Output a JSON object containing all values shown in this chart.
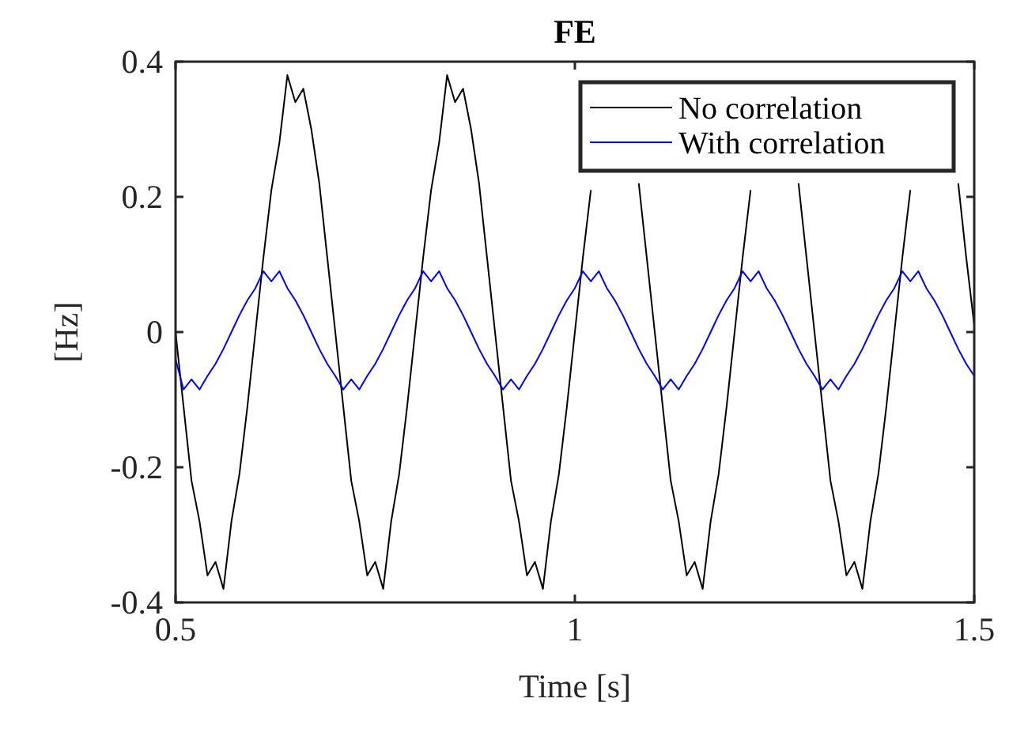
{
  "chart_data": {
    "type": "line",
    "title": "FE",
    "xlabel": "Time [s]",
    "ylabel": "[Hz]",
    "x": [
      0.5,
      0.51,
      0.52,
      0.53,
      0.54,
      0.55,
      0.56,
      0.57,
      0.58,
      0.59,
      0.6,
      0.61,
      0.62,
      0.63,
      0.64,
      0.65,
      0.66,
      0.67,
      0.68,
      0.69,
      0.7,
      0.71,
      0.72,
      0.73,
      0.74,
      0.75,
      0.76,
      0.77,
      0.78,
      0.79,
      0.8,
      0.81,
      0.82,
      0.83,
      0.84,
      0.85,
      0.86,
      0.87,
      0.88,
      0.89,
      0.9,
      0.91,
      0.92,
      0.93,
      0.94,
      0.95,
      0.96,
      0.97,
      0.98,
      0.99,
      1,
      1.01,
      1.02,
      1.03,
      1.04,
      1.05,
      1.06,
      1.07,
      1.08,
      1.09,
      1.1,
      1.11,
      1.12,
      1.13,
      1.14,
      1.15,
      1.16,
      1.17,
      1.18,
      1.19,
      1.2,
      1.21,
      1.22,
      1.23,
      1.24,
      1.25,
      1.26,
      1.27,
      1.28,
      1.29,
      1.3,
      1.31,
      1.32,
      1.33,
      1.34,
      1.35,
      1.36,
      1.37,
      1.38,
      1.39,
      1.4,
      1.41,
      1.42,
      1.43,
      1.44,
      1.45,
      1.46,
      1.47,
      1.48,
      1.49,
      1.5
    ],
    "series": [
      {
        "name": "No correlation",
        "color": "#000000",
        "values": [
          0,
          -0.11,
          -0.22,
          -0.28,
          -0.36,
          -0.34,
          -0.38,
          -0.28,
          -0.21,
          -0.11,
          0,
          0.11,
          0.21,
          0.28,
          0.38,
          0.34,
          0.36,
          0.3,
          0.22,
          0.11,
          0,
          -0.11,
          -0.22,
          -0.28,
          -0.36,
          -0.34,
          -0.38,
          -0.28,
          -0.21,
          -0.11,
          0,
          0.11,
          0.21,
          0.28,
          0.38,
          0.34,
          0.36,
          0.3,
          0.22,
          0.11,
          0,
          -0.11,
          -0.22,
          -0.28,
          -0.36,
          -0.34,
          -0.38,
          -0.28,
          -0.21,
          -0.11,
          0,
          0.11,
          0.21,
          null,
          null,
          null,
          null,
          null,
          0.22,
          0.11,
          0,
          -0.11,
          -0.22,
          -0.28,
          -0.36,
          -0.34,
          -0.38,
          -0.28,
          -0.21,
          -0.11,
          0,
          0.11,
          0.21,
          null,
          null,
          null,
          null,
          null,
          0.22,
          0.11,
          0,
          -0.11,
          -0.22,
          -0.28,
          -0.36,
          -0.34,
          -0.38,
          -0.28,
          -0.21,
          -0.11,
          0,
          0.11,
          0.21,
          null,
          null,
          null,
          null,
          null,
          0.22,
          0.11,
          0.01
        ]
      },
      {
        "name": "With correlation",
        "color": "#0000ff",
        "values": [
          -0.04,
          -0.085,
          -0.07,
          -0.085,
          -0.065,
          -0.047,
          -0.025,
          0,
          0.025,
          0.047,
          0.065,
          0.09,
          0.075,
          0.09,
          0.065,
          0.047,
          0.025,
          0,
          -0.025,
          -0.047,
          -0.065,
          -0.085,
          -0.07,
          -0.085,
          -0.065,
          -0.047,
          -0.025,
          0,
          0.025,
          0.047,
          0.065,
          0.09,
          0.075,
          0.09,
          0.065,
          0.047,
          0.025,
          0,
          -0.025,
          -0.047,
          -0.065,
          -0.085,
          -0.07,
          -0.085,
          -0.065,
          -0.047,
          -0.025,
          0,
          0.025,
          0.047,
          0.065,
          0.09,
          0.075,
          0.09,
          0.065,
          0.047,
          0.025,
          0,
          -0.025,
          -0.047,
          -0.065,
          -0.085,
          -0.07,
          -0.085,
          -0.065,
          -0.047,
          -0.025,
          0,
          0.025,
          0.047,
          0.065,
          0.09,
          0.075,
          0.09,
          0.065,
          0.047,
          0.025,
          0,
          -0.025,
          -0.047,
          -0.065,
          -0.085,
          -0.07,
          -0.085,
          -0.065,
          -0.047,
          -0.025,
          0,
          0.025,
          0.047,
          0.065,
          0.09,
          0.075,
          0.09,
          0.065,
          0.047,
          0.025,
          0,
          -0.025,
          -0.047,
          -0.065
        ]
      }
    ],
    "xlim": [
      0.5,
      1.5
    ],
    "xticks": [
      0.5,
      1,
      1.5
    ],
    "ylim": [
      -0.4,
      0.4
    ],
    "yticks": [
      -0.4,
      -0.2,
      0,
      0.2,
      0.4
    ],
    "legend": "top right",
    "grid": false,
    "marker": "none",
    "line_style": "solid"
  }
}
